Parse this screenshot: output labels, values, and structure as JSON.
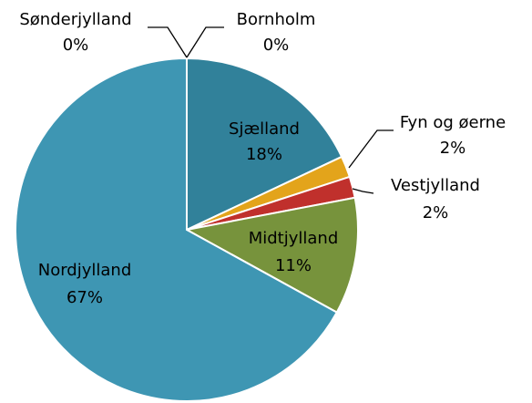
{
  "chart_data": {
    "type": "pie",
    "categories": [
      "Bornholm",
      "Sjælland",
      "Fyn og øerne",
      "Vestjylland",
      "Midtjylland",
      "Nordjylland",
      "Sønderjylland"
    ],
    "values": [
      0,
      18,
      2,
      2,
      11,
      67,
      0
    ],
    "value_labels": [
      "0%",
      "18%",
      "2%",
      "2%",
      "11%",
      "67%",
      "0%"
    ],
    "colors": [
      "#2e6f85",
      "#31819a",
      "#e3a41b",
      "#c0302c",
      "#77933c",
      "#3e96b3",
      "#3e96b3"
    ]
  }
}
